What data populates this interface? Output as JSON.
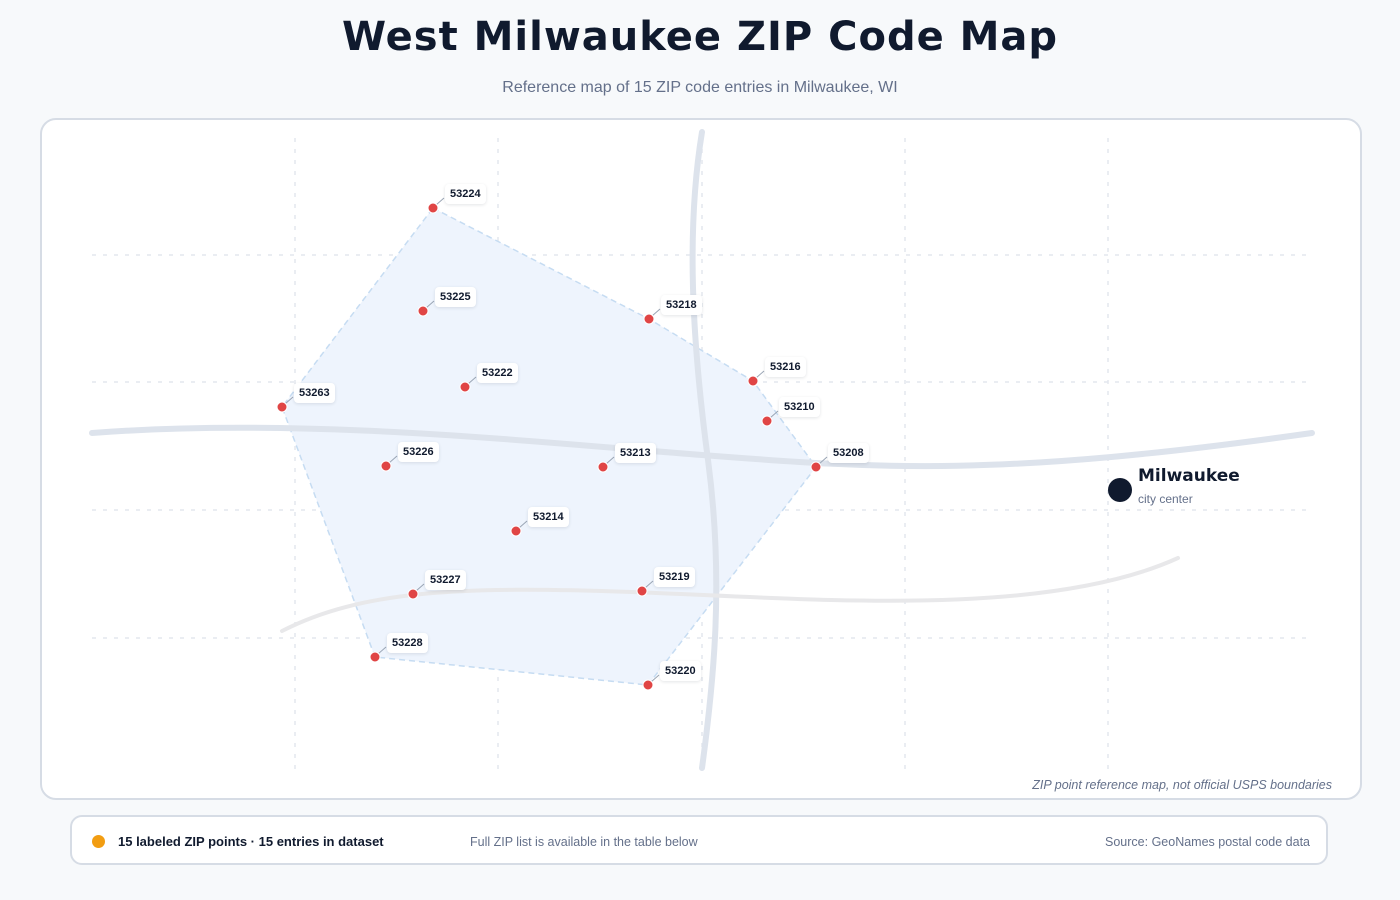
{
  "page": {
    "title": "West Milwaukee ZIP Code Map",
    "subtitle": "Reference map of 15 ZIP code entries in Milwaukee, WI"
  },
  "map": {
    "note": "ZIP point reference map, not official USPS boundaries",
    "marker_color": "#e04545",
    "hull_fill": "#eef4fd",
    "hull_stroke": "#c6dcf2",
    "road_color": "#e1e6ee",
    "zip_points": [
      {
        "zip": "53224"
      },
      {
        "zip": "53225"
      },
      {
        "zip": "53218"
      },
      {
        "zip": "53216"
      },
      {
        "zip": "53222"
      },
      {
        "zip": "53263"
      },
      {
        "zip": "53210"
      },
      {
        "zip": "53226"
      },
      {
        "zip": "53213"
      },
      {
        "zip": "53208"
      },
      {
        "zip": "53214"
      },
      {
        "zip": "53227"
      },
      {
        "zip": "53219"
      },
      {
        "zip": "53228"
      },
      {
        "zip": "53220"
      }
    ],
    "city": {
      "name": "Milwaukee",
      "label": "city center"
    }
  },
  "footer": {
    "legend_color": "#f29d12",
    "count_text": "15 labeled ZIP points · 15 entries in dataset",
    "note": "Full ZIP list is available in the table below",
    "source": "Source: GeoNames postal code data"
  }
}
